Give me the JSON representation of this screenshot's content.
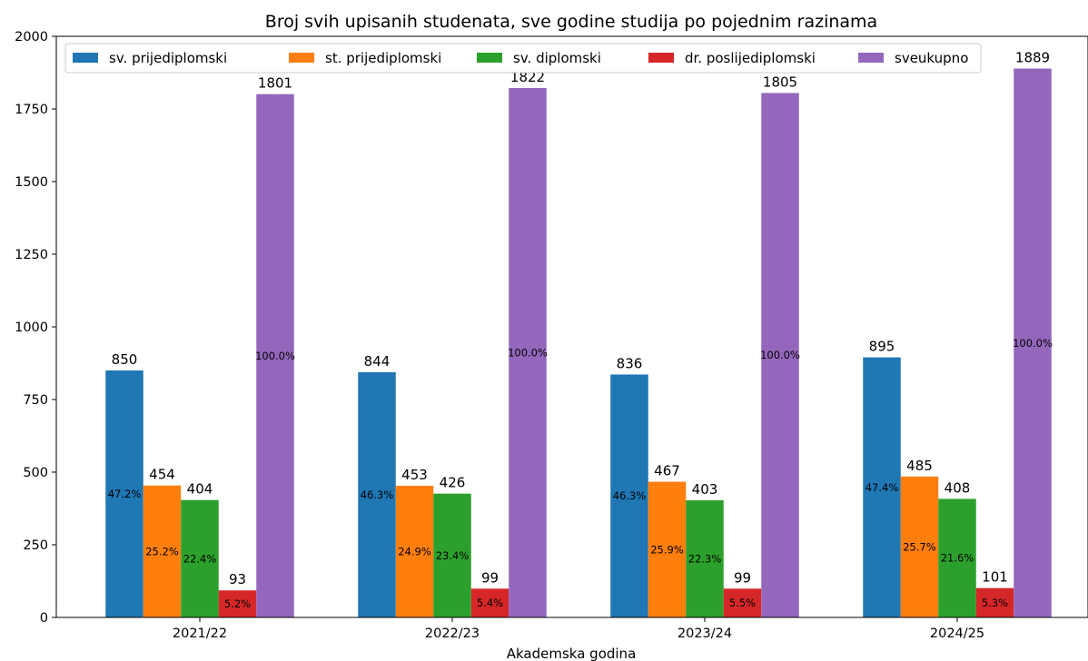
{
  "chart_data": {
    "type": "bar",
    "title": "Broj svih upisanih studenata, sve godine studija po pojednim razinama",
    "xlabel": "Akademska godina",
    "ylabel": "",
    "ylim": [
      0,
      2000
    ],
    "yticks": [
      0,
      250,
      500,
      750,
      1000,
      1250,
      1500,
      1750,
      2000
    ],
    "grid": false,
    "legend_position": "top",
    "categories": [
      "2021/22",
      "2022/23",
      "2023/24",
      "2024/25"
    ],
    "series": [
      {
        "name": "sv. prijediplomski",
        "color": "#1f77b4",
        "values": [
          850,
          844,
          836,
          895
        ],
        "percent_labels": [
          "47.2%",
          "46.3%",
          "46.3%",
          "47.4%"
        ]
      },
      {
        "name": "st. prijediplomski",
        "color": "#ff7f0e",
        "values": [
          454,
          453,
          467,
          485
        ],
        "percent_labels": [
          "25.2%",
          "24.9%",
          "25.9%",
          "25.7%"
        ]
      },
      {
        "name": "sv. diplomski",
        "color": "#2ca02c",
        "values": [
          404,
          426,
          403,
          408
        ],
        "percent_labels": [
          "22.4%",
          "23.4%",
          "22.3%",
          "21.6%"
        ]
      },
      {
        "name": "dr. poslijediplomski",
        "color": "#d62728",
        "values": [
          93,
          99,
          99,
          101
        ],
        "percent_labels": [
          "5.2%",
          "5.4%",
          "5.5%",
          "5.3%"
        ]
      },
      {
        "name": "sveukupno",
        "color": "#9467bd",
        "values": [
          1801,
          1822,
          1805,
          1889
        ],
        "percent_labels": [
          "100.0%",
          "100.0%",
          "100.0%",
          "100.0%"
        ]
      }
    ]
  }
}
